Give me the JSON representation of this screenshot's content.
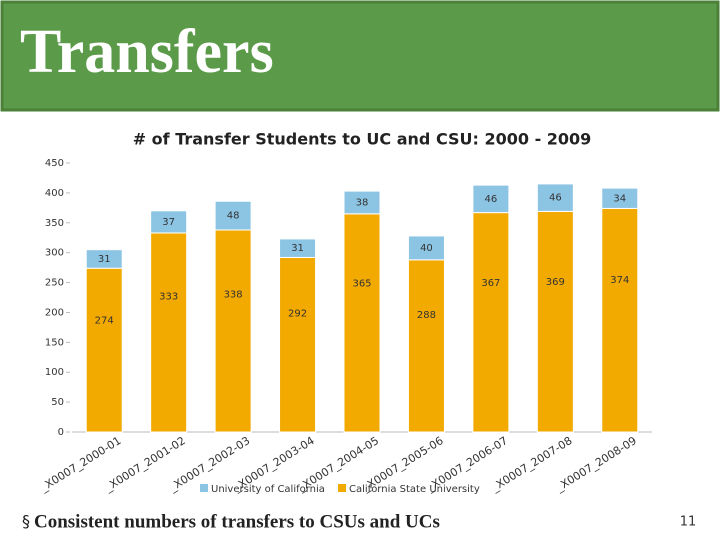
{
  "slide_title": "Transfers",
  "chart_data": {
    "type": "stacked_bar",
    "title": "# of Transfer Students to UC and CSU: 2000 - 2009",
    "categories": [
      "_X0007_2000-01",
      "_X0007_2001-02",
      "_X0007_2002-03",
      "_X0007_2003-04",
      "_X0007_2004-05",
      "_X0007_2005-06",
      "_X0007_2006-07",
      "_X0007_2007-08",
      "_X0007_2008-09"
    ],
    "series": [
      {
        "name": "University of California",
        "color": "#8cc4e4",
        "values": [
          31,
          37,
          48,
          31,
          38,
          40,
          46,
          46,
          34
        ]
      },
      {
        "name": "California State University",
        "color": "#f2a900",
        "values": [
          274,
          333,
          338,
          292,
          365,
          288,
          367,
          369,
          374
        ]
      }
    ],
    "ylim": [
      0,
      450
    ],
    "yticks": [
      0,
      50,
      100,
      150,
      200,
      250,
      300,
      350,
      400,
      450
    ],
    "legend": "bottom"
  },
  "bullet": "Consistent numbers of transfers to CSUs and UCs",
  "page_number": "11"
}
